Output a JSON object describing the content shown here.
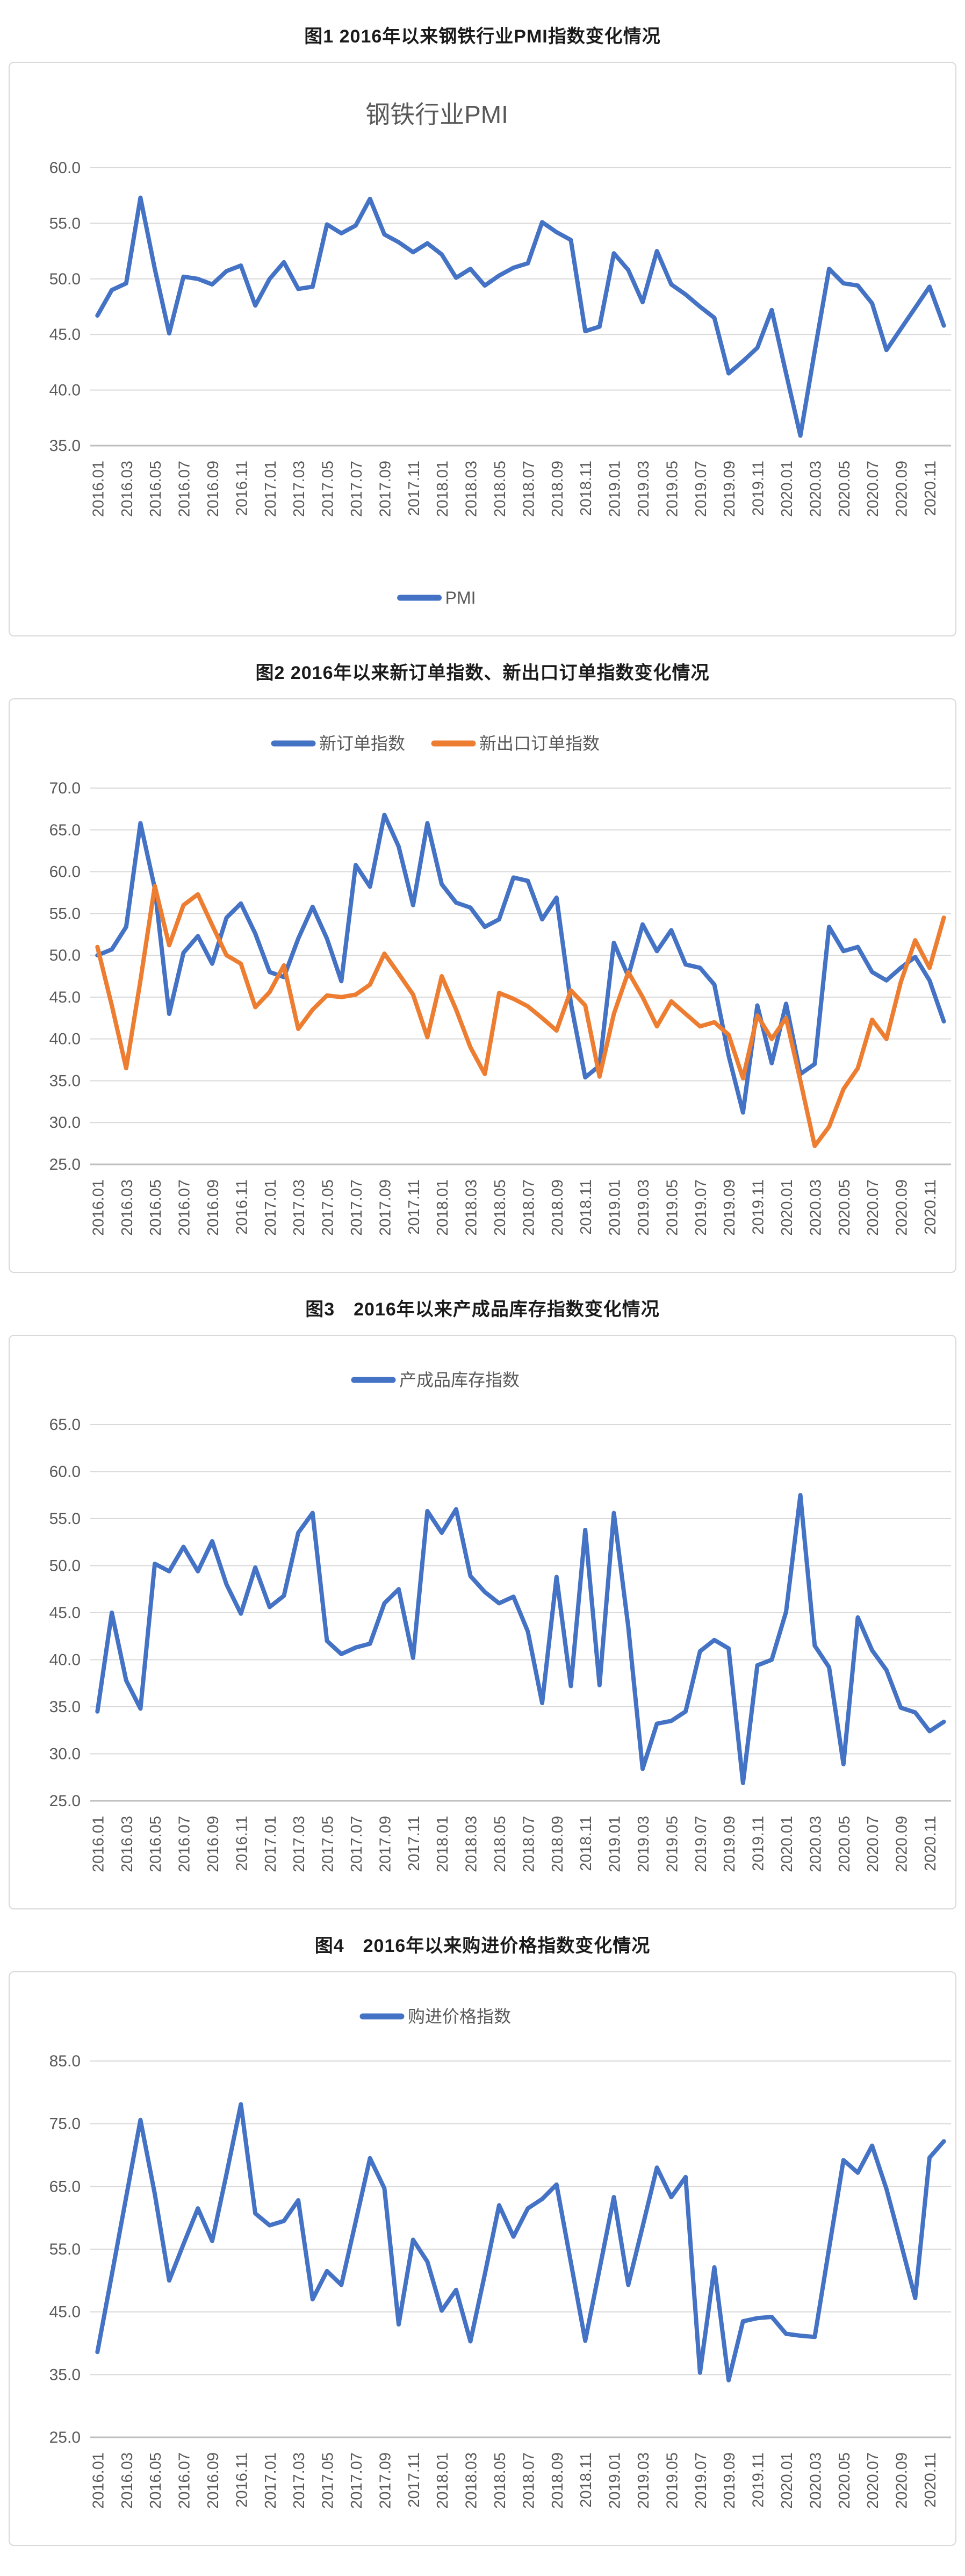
{
  "styles": {
    "series_blue": "#4472C4",
    "series_orange": "#ED7D31",
    "gridline": "#D9D9D9",
    "axis_line": "#BFBFBF",
    "axis_text": "#595959",
    "chart_title_text": "#595959",
    "figure_title_text": "#1a1a1a",
    "box_border": "#D9D9D9",
    "background": "#FFFFFF"
  },
  "chart_data": {
    "categories": [
      "2016.01",
      "2016.02",
      "2016.03",
      "2016.04",
      "2016.05",
      "2016.06",
      "2016.07",
      "2016.08",
      "2016.09",
      "2016.10",
      "2016.11",
      "2016.12",
      "2017.01",
      "2017.02",
      "2017.03",
      "2017.04",
      "2017.05",
      "2017.06",
      "2017.07",
      "2017.08",
      "2017.09",
      "2017.10",
      "2017.11",
      "2017.12",
      "2018.01",
      "2018.02",
      "2018.03",
      "2018.04",
      "2018.05",
      "2018.06",
      "2018.07",
      "2018.08",
      "2018.09",
      "2018.10",
      "2018.11",
      "2018.12",
      "2019.01",
      "2019.02",
      "2019.03",
      "2019.04",
      "2019.05",
      "2019.06",
      "2019.07",
      "2019.08",
      "2019.09",
      "2019.10",
      "2019.11",
      "2019.12",
      "2020.01",
      "2020.02",
      "2020.03",
      "2020.04",
      "2020.05",
      "2020.06",
      "2020.07",
      "2020.08",
      "2020.09",
      "2020.10",
      "2020.11",
      "2020.12"
    ],
    "x_tick_every": 2,
    "charts": [
      {
        "type": "line",
        "title": "图1 2016年以来钢铁行业PMI指数变化情况",
        "chart_title": "钢铁行业PMI",
        "legend_position": "bottom",
        "ylim": [
          35,
          60
        ],
        "ytick_step": 5,
        "grid": true,
        "series": [
          {
            "name": "PMI",
            "color": "#4472C4",
            "values": [
              46.7,
              49.0,
              49.6,
              57.3,
              50.9,
              45.1,
              50.2,
              50.0,
              49.5,
              50.7,
              51.2,
              47.6,
              50.0,
              51.5,
              49.1,
              49.3,
              54.9,
              54.1,
              54.8,
              57.2,
              54.0,
              53.3,
              52.4,
              53.2,
              52.2,
              50.1,
              50.9,
              49.4,
              50.3,
              51.0,
              51.4,
              55.1,
              54.2,
              53.5,
              45.3,
              45.7,
              52.3,
              50.8,
              47.9,
              52.5,
              49.5,
              48.6,
              47.5,
              46.5,
              41.5,
              42.6,
              43.8,
              47.2,
              41.5,
              35.9,
              43.5,
              50.9,
              49.6,
              49.4,
              47.8,
              43.6,
              45.5,
              47.4,
              49.3,
              45.8
            ]
          }
        ]
      },
      {
        "type": "line",
        "title": "图2 2016年以来新订单指数、新出口订单指数变化情况",
        "chart_title": "",
        "legend_position": "top",
        "ylim": [
          25,
          70
        ],
        "ytick_step": 5,
        "grid": true,
        "series": [
          {
            "name": "新订单指数",
            "color": "#4472C4",
            "values": [
              50.0,
              50.7,
              53.4,
              65.8,
              58.0,
              43.0,
              50.3,
              52.3,
              49.0,
              54.5,
              56.2,
              52.6,
              48.0,
              47.4,
              52.0,
              55.8,
              52.0,
              46.9,
              60.8,
              58.2,
              66.8,
              63.0,
              56.0,
              65.8,
              58.5,
              56.3,
              55.7,
              53.4,
              54.3,
              59.3,
              58.9,
              54.3,
              56.9,
              44.3,
              35.4,
              36.8,
              51.5,
              47.5,
              53.7,
              50.5,
              53.0,
              48.9,
              48.5,
              46.5,
              38.0,
              31.2,
              44.0,
              37.1,
              44.2,
              35.8,
              37.0,
              53.4,
              50.5,
              51.0,
              48.0,
              47.0,
              48.5,
              49.8,
              47.0,
              42.1
            ]
          },
          {
            "name": "新出口订单指数",
            "color": "#ED7D31",
            "values": [
              51.0,
              44.0,
              36.5,
              47.0,
              58.3,
              51.2,
              56.0,
              57.3,
              53.6,
              50.0,
              49.0,
              43.8,
              45.6,
              48.8,
              41.2,
              43.5,
              45.2,
              45.0,
              45.3,
              46.5,
              50.2,
              47.8,
              45.3,
              40.2,
              47.5,
              43.5,
              39.0,
              35.8,
              45.5,
              44.8,
              43.9,
              42.5,
              41.0,
              45.8,
              44.0,
              35.5,
              43.0,
              48.0,
              45.0,
              41.5,
              44.5,
              43.0,
              41.5,
              42.0,
              40.5,
              35.3,
              42.8,
              40.0,
              42.5,
              35.0,
              27.2,
              29.5,
              34.0,
              36.5,
              42.3,
              40.0,
              46.8,
              51.8,
              48.5,
              54.5
            ]
          }
        ]
      },
      {
        "type": "line",
        "title": "图3　2016年以来产成品库存指数变化情况",
        "chart_title": "",
        "legend_position": "top",
        "ylim": [
          25,
          65
        ],
        "ytick_step": 5,
        "grid": true,
        "series": [
          {
            "name": "产成品库存指数",
            "color": "#4472C4",
            "values": [
              34.5,
              45.0,
              37.8,
              34.8,
              50.2,
              49.4,
              52.0,
              49.4,
              52.6,
              48.0,
              44.9,
              49.8,
              45.6,
              46.8,
              53.5,
              55.6,
              42.0,
              40.6,
              41.3,
              41.7,
              46.0,
              47.5,
              40.2,
              55.8,
              53.5,
              56.0,
              48.9,
              47.2,
              46.0,
              46.7,
              43.0,
              35.4,
              48.8,
              37.2,
              53.8,
              37.3,
              55.6,
              43.5,
              28.4,
              33.2,
              33.5,
              34.5,
              40.9,
              42.1,
              41.2,
              26.9,
              39.4,
              40.0,
              45.1,
              57.5,
              41.5,
              39.2,
              28.9,
              44.5,
              41.0,
              38.9,
              34.9,
              34.4,
              32.4,
              33.4
            ]
          }
        ]
      },
      {
        "type": "line",
        "title": "图4　2016年以来购进价格指数变化情况",
        "chart_title": "",
        "legend_position": "top",
        "ylim": [
          25,
          85
        ],
        "ytick_step": 10,
        "grid": true,
        "series": [
          {
            "name": "购进价格指数",
            "color": "#4472C4",
            "values": [
              38.6,
              50.9,
              63.3,
              75.6,
              63.8,
              50.0,
              55.8,
              61.5,
              56.3,
              67.0,
              78.1,
              60.7,
              58.8,
              59.5,
              62.8,
              47.0,
              51.5,
              49.3,
              59.4,
              69.5,
              64.7,
              43.0,
              56.5,
              53.0,
              45.2,
              48.5,
              40.3,
              51.0,
              62.0,
              57.0,
              61.5,
              63.0,
              65.3,
              52.9,
              40.4,
              51.8,
              63.3,
              49.3,
              58.6,
              68.0,
              63.3,
              66.5,
              35.3,
              52.1,
              34.1,
              43.5,
              44.0,
              44.2,
              41.5,
              41.2,
              41.0,
              55.1,
              69.2,
              67.2,
              71.5,
              64.6,
              56.0,
              47.2,
              69.6,
              72.2
            ]
          }
        ]
      }
    ]
  }
}
